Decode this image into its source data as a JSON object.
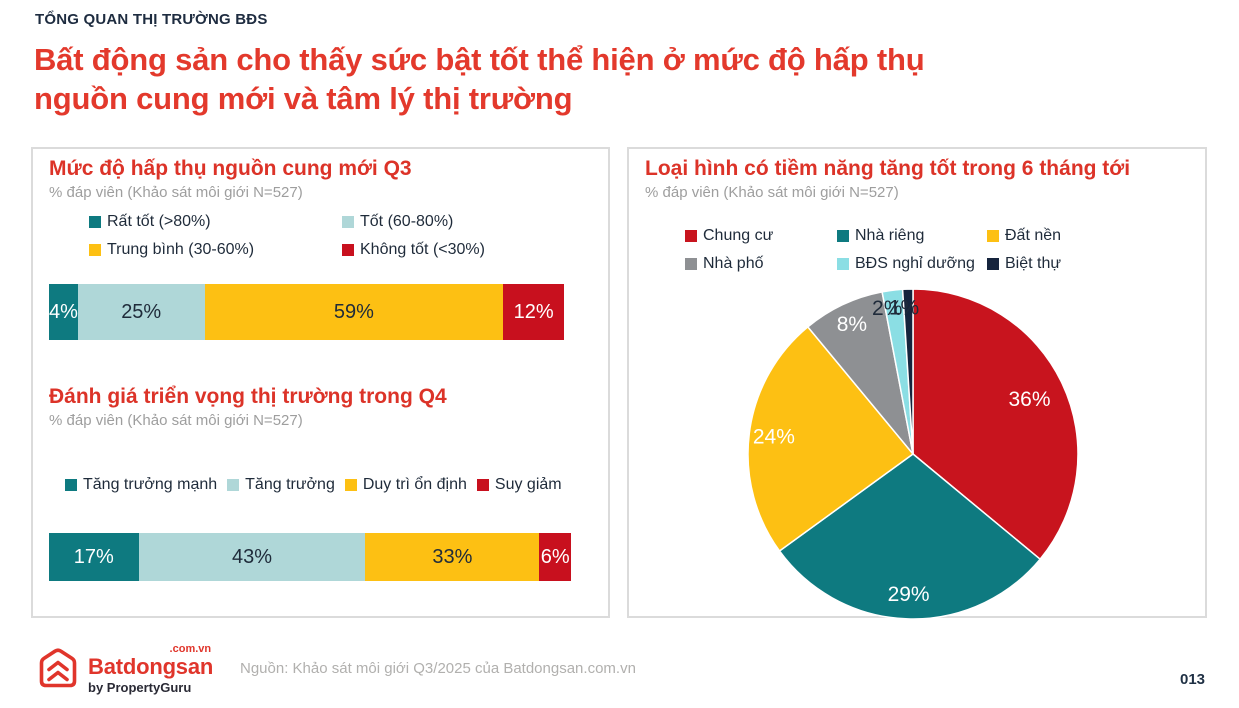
{
  "header": {
    "eyebrow": "TỔNG QUAN THỊ TRƯỜNG BĐS",
    "title_lines": [
      "Bất động sản cho thấy sức bật tốt thể hiện ở mức độ hấp thụ",
      "nguồn cung mới và tâm lý thị trường"
    ]
  },
  "palette": {
    "title_red": "#E3392C",
    "chart_title_red": "#DC3328",
    "heading_navy": "#1E2C40",
    "legend_text_navy": "#1F2B3A",
    "subtitle_gray": "#9E9E9E",
    "teal_dark": "#0E7A80",
    "teal_light": "#AFD7D8",
    "yellow": "#FDC013",
    "red": "#C8101E",
    "gray": "#8E9093",
    "cyan": "#8BDEE4",
    "navy": "#16243D",
    "logo_red": "#E0352B"
  },
  "footer": {
    "logo_domain": ".com.vn",
    "logo_brand": "Batdongsan",
    "logo_byline": "by PropertyGuru",
    "source": "Nguồn: Khảo sát môi giới Q3/2025 của Batdongsan.com.vn",
    "page_number": "013"
  },
  "chart_data": [
    {
      "id": "absorption",
      "type": "bar",
      "variant": "horizontal-stacked",
      "title": "Mức độ hấp thụ nguồn cung mới Q3",
      "subtitle": "% đáp viên (Khảo sát môi giới N=527)",
      "unit": "%",
      "xlim": [
        0,
        100
      ],
      "legend_position": "top",
      "series": [
        {
          "name": "Rất tốt (>80%)",
          "value": 4,
          "color": "#0E7A80",
          "text_color": "#FFFFFF"
        },
        {
          "name": "Tốt (60-80%)",
          "value": 25,
          "color": "#AFD7D8",
          "text_color": "#1F2B3A"
        },
        {
          "name": "Trung bình (30-60%)",
          "value": 59,
          "color": "#FDC013",
          "text_color": "#1F2B3A"
        },
        {
          "name": "Không tốt (<30%)",
          "value": 12,
          "color": "#C8101E",
          "text_color": "#FFFFFF"
        }
      ]
    },
    {
      "id": "outlook",
      "type": "bar",
      "variant": "horizontal-stacked",
      "title": "Đánh giá triển vọng thị trường trong Q4",
      "subtitle": "% đáp viên (Khảo sát môi giới N=527)",
      "unit": "%",
      "xlim": [
        0,
        100
      ],
      "legend_position": "top",
      "series": [
        {
          "name": "Tăng trưởng mạnh",
          "value": 17,
          "color": "#0E7A80",
          "text_color": "#FFFFFF"
        },
        {
          "name": "Tăng trưởng",
          "value": 43,
          "color": "#AFD7D8",
          "text_color": "#1F2B3A"
        },
        {
          "name": "Duy trì ổn định",
          "value": 33,
          "color": "#FDC013",
          "text_color": "#1F2B3A"
        },
        {
          "name": "Suy giảm",
          "value": 6,
          "color": "#C8101E",
          "text_color": "#FFFFFF"
        }
      ]
    },
    {
      "id": "potential",
      "type": "pie",
      "title": "Loại hình có tiềm năng tăng tốt trong 6 tháng tới",
      "subtitle": "% đáp viên (Khảo sát môi giới N=527)",
      "unit": "%",
      "start_angle": 0,
      "direction": "clockwise",
      "legend_position": "top",
      "slices": [
        {
          "name": "Chung cư",
          "value": 36,
          "color": "#C8141E",
          "label_color": "#FFFFFF",
          "label_radius": 0.78
        },
        {
          "name": "Nhà riêng",
          "value": 29,
          "color": "#0E7A80",
          "label_color": "#FFFFFF",
          "label_radius": 0.85
        },
        {
          "name": "Đất nền",
          "value": 24,
          "color": "#FDC013",
          "label_color": "#FFFFFF",
          "label_radius": 0.85
        },
        {
          "name": "Nhà phố",
          "value": 8,
          "color": "#8E9093",
          "label_color": "#FFFFFF",
          "label_radius": 0.87
        },
        {
          "name": "BĐS nghỉ dưỡng",
          "value": 2,
          "color": "#8BDEE4",
          "label_color": "#1F2B3A",
          "label_radius": 0.9,
          "label_angle": 350
        },
        {
          "name": "Biệt thự",
          "value": 1,
          "color": "#16243D",
          "label_color": "#1F2B3A",
          "label_radius": 0.89,
          "label_angle": 356.5
        }
      ]
    }
  ]
}
